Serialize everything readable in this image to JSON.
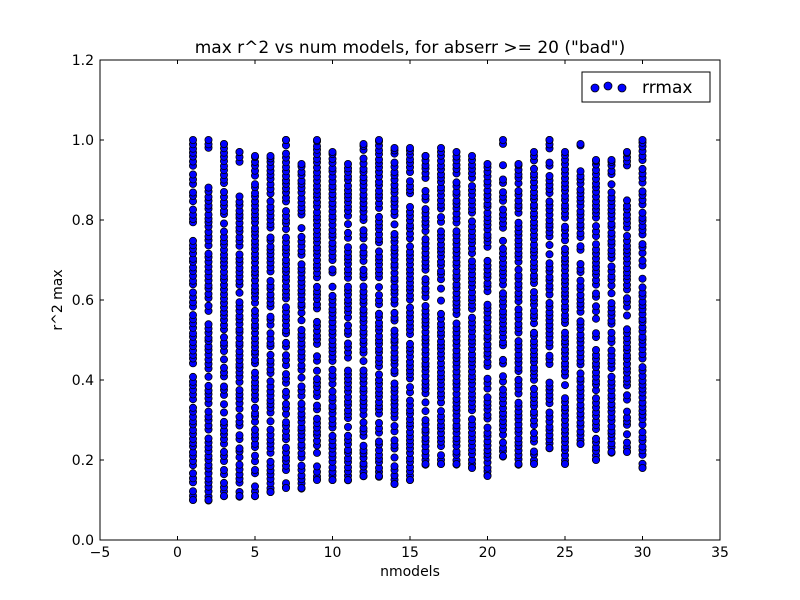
{
  "chart_data": {
    "type": "scatter",
    "title": "max r^2 vs num models, for abserr >= 20 (\"bad\")",
    "xlabel": "nmodels",
    "ylabel": "r^2 max",
    "xlim": [
      -5,
      35
    ],
    "ylim": [
      0.0,
      1.2
    ],
    "xticks": [
      "−5",
      "0",
      "5",
      "10",
      "15",
      "20",
      "25",
      "30",
      "35"
    ],
    "yticks": [
      "0.0",
      "0.2",
      "0.4",
      "0.6",
      "0.8",
      "1.0",
      "1.2"
    ],
    "grid": false,
    "legend": {
      "position": "top-right",
      "entries": [
        "rrmax"
      ]
    },
    "marker_color": "#0000ff",
    "marker_edge_color": "#000000",
    "series": [
      {
        "name": "rrmax",
        "columns": [
          {
            "x": 1,
            "ymin": 0.1,
            "ymax": 1.0,
            "gap_min": null,
            "gap_max": null
          },
          {
            "x": 2,
            "ymin": 0.1,
            "ymax": 1.0,
            "gap_min": 0.89,
            "gap_max": 0.98
          },
          {
            "x": 3,
            "ymin": 0.11,
            "ymax": 0.99,
            "gap_min": null,
            "gap_max": null
          },
          {
            "x": 4,
            "ymin": 0.11,
            "ymax": 0.97,
            "gap_min": 0.86,
            "gap_max": 0.94
          },
          {
            "x": 5,
            "ymin": 0.11,
            "ymax": 0.96,
            "gap_min": null,
            "gap_max": null
          },
          {
            "x": 6,
            "ymin": 0.12,
            "ymax": 0.96,
            "gap_min": null,
            "gap_max": null
          },
          {
            "x": 7,
            "ymin": 0.13,
            "ymax": 1.0,
            "gap_min": null,
            "gap_max": null
          },
          {
            "x": 8,
            "ymin": 0.13,
            "ymax": 0.94,
            "gap_min": null,
            "gap_max": null
          },
          {
            "x": 9,
            "ymin": 0.15,
            "ymax": 1.0,
            "gap_min": null,
            "gap_max": null
          },
          {
            "x": 10,
            "ymin": 0.15,
            "ymax": 0.97,
            "gap_min": null,
            "gap_max": null
          },
          {
            "x": 11,
            "ymin": 0.15,
            "ymax": 0.94,
            "gap_min": null,
            "gap_max": null
          },
          {
            "x": 12,
            "ymin": 0.16,
            "ymax": 0.99,
            "gap_min": null,
            "gap_max": null
          },
          {
            "x": 13,
            "ymin": 0.16,
            "ymax": 1.0,
            "gap_min": null,
            "gap_max": null
          },
          {
            "x": 14,
            "ymin": 0.14,
            "ymax": 0.98,
            "gap_min": null,
            "gap_max": null
          },
          {
            "x": 15,
            "ymin": 0.15,
            "ymax": 0.98,
            "gap_min": null,
            "gap_max": null
          },
          {
            "x": 16,
            "ymin": 0.19,
            "ymax": 0.96,
            "gap_min": null,
            "gap_max": null
          },
          {
            "x": 17,
            "ymin": 0.19,
            "ymax": 0.98,
            "gap_min": null,
            "gap_max": null
          },
          {
            "x": 18,
            "ymin": 0.19,
            "ymax": 0.97,
            "gap_min": null,
            "gap_max": null
          },
          {
            "x": 19,
            "ymin": 0.18,
            "ymax": 0.96,
            "gap_min": null,
            "gap_max": null
          },
          {
            "x": 20,
            "ymin": 0.16,
            "ymax": 0.94,
            "gap_min": null,
            "gap_max": null
          },
          {
            "x": 21,
            "ymin": 0.21,
            "ymax": 1.0,
            "gap_min": 0.95,
            "gap_max": 0.99
          },
          {
            "x": 22,
            "ymin": 0.19,
            "ymax": 0.94,
            "gap_min": null,
            "gap_max": null
          },
          {
            "x": 23,
            "ymin": 0.19,
            "ymax": 0.97,
            "gap_min": null,
            "gap_max": null
          },
          {
            "x": 24,
            "ymin": 0.23,
            "ymax": 1.0,
            "gap_min": null,
            "gap_max": null
          },
          {
            "x": 25,
            "ymin": 0.19,
            "ymax": 0.97,
            "gap_min": null,
            "gap_max": null
          },
          {
            "x": 26,
            "ymin": 0.24,
            "ymax": 0.99,
            "gap_min": 0.93,
            "gap_max": 0.98
          },
          {
            "x": 27,
            "ymin": 0.2,
            "ymax": 0.95,
            "gap_min": null,
            "gap_max": null
          },
          {
            "x": 28,
            "ymin": 0.22,
            "ymax": 0.95,
            "gap_min": null,
            "gap_max": null
          },
          {
            "x": 29,
            "ymin": 0.22,
            "ymax": 0.97,
            "gap_min": 0.88,
            "gap_max": 0.93
          },
          {
            "x": 30,
            "ymin": 0.18,
            "ymax": 1.0,
            "gap_min": null,
            "gap_max": null
          }
        ]
      }
    ]
  }
}
